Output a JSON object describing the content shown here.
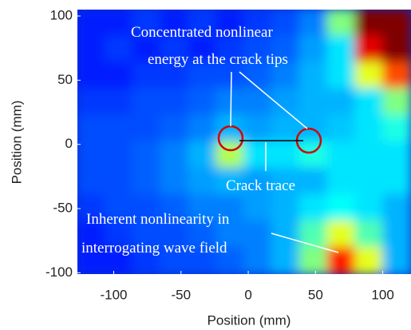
{
  "chart_data": {
    "type": "heatmap",
    "x_label": "Position (mm)",
    "y_label": "Position (mm)",
    "xlim": [
      -127,
      121
    ],
    "ylim": [
      -101,
      105
    ],
    "xticks": [
      -100,
      -50,
      0,
      50,
      100
    ],
    "yticks": [
      -100,
      -50,
      0,
      50,
      100
    ],
    "colormap": "jet",
    "z": [
      [
        0.15,
        0.15,
        0.18,
        0.15,
        0.18,
        0.15,
        0.18,
        0.2,
        0.25,
        0.5,
        1.0,
        1.0
      ],
      [
        0.15,
        0.18,
        0.15,
        0.18,
        0.15,
        0.18,
        0.2,
        0.22,
        0.28,
        0.35,
        0.9,
        1.0
      ],
      [
        0.15,
        0.15,
        0.18,
        0.18,
        0.2,
        0.2,
        0.22,
        0.25,
        0.3,
        0.35,
        0.6,
        0.8
      ],
      [
        0.18,
        0.18,
        0.2,
        0.2,
        0.22,
        0.25,
        0.25,
        0.28,
        0.3,
        0.3,
        0.35,
        0.5
      ],
      [
        0.2,
        0.2,
        0.2,
        0.22,
        0.25,
        0.3,
        0.28,
        0.3,
        0.3,
        0.32,
        0.35,
        0.4
      ],
      [
        0.2,
        0.2,
        0.22,
        0.25,
        0.3,
        0.55,
        0.35,
        0.35,
        0.4,
        0.35,
        0.35,
        0.35
      ],
      [
        0.2,
        0.2,
        0.22,
        0.25,
        0.28,
        0.3,
        0.28,
        0.3,
        0.3,
        0.35,
        0.35,
        0.35
      ],
      [
        0.18,
        0.2,
        0.2,
        0.22,
        0.25,
        0.25,
        0.28,
        0.3,
        0.35,
        0.38,
        0.35,
        0.3
      ],
      [
        0.15,
        0.18,
        0.2,
        0.2,
        0.22,
        0.25,
        0.25,
        0.3,
        0.45,
        0.6,
        0.45,
        0.3
      ],
      [
        0.15,
        0.15,
        0.18,
        0.2,
        0.2,
        0.22,
        0.25,
        0.3,
        0.5,
        0.85,
        0.6,
        0.3
      ]
    ],
    "annotations": {
      "tips": [
        "Concentrated nonlinear",
        "energy at the crack tips"
      ],
      "trace": "Crack trace",
      "inherent": [
        "Inherent nonlinearity in",
        "interrogating wave field"
      ]
    }
  }
}
